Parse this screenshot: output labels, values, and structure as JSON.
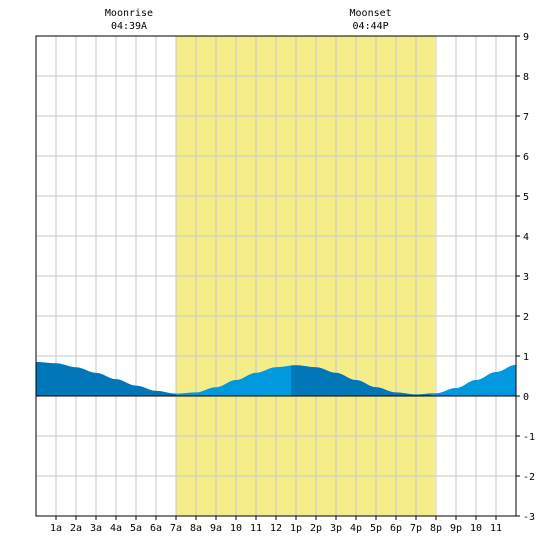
{
  "chart_data": {
    "type": "area",
    "title": "",
    "xlabel": "",
    "ylabel": "",
    "xlim": [
      0,
      24
    ],
    "ylim": [
      -3,
      9
    ],
    "y_ticks": [
      9,
      8,
      7,
      6,
      5,
      4,
      3,
      2,
      1,
      0,
      -1,
      -2,
      -3
    ],
    "x_ticks": [
      {
        "hour": 1,
        "label": "1a"
      },
      {
        "hour": 2,
        "label": "2a"
      },
      {
        "hour": 3,
        "label": "3a"
      },
      {
        "hour": 4,
        "label": "4a"
      },
      {
        "hour": 5,
        "label": "5a"
      },
      {
        "hour": 6,
        "label": "6a"
      },
      {
        "hour": 7,
        "label": "7a"
      },
      {
        "hour": 8,
        "label": "8a"
      },
      {
        "hour": 9,
        "label": "9a"
      },
      {
        "hour": 10,
        "label": "10"
      },
      {
        "hour": 11,
        "label": "11"
      },
      {
        "hour": 12,
        "label": "12"
      },
      {
        "hour": 13,
        "label": "1p"
      },
      {
        "hour": 14,
        "label": "2p"
      },
      {
        "hour": 15,
        "label": "3p"
      },
      {
        "hour": 16,
        "label": "4p"
      },
      {
        "hour": 17,
        "label": "5p"
      },
      {
        "hour": 18,
        "label": "6p"
      },
      {
        "hour": 19,
        "label": "7p"
      },
      {
        "hour": 20,
        "label": "8p"
      },
      {
        "hour": 21,
        "label": "9p"
      },
      {
        "hour": 22,
        "label": "10"
      },
      {
        "hour": 23,
        "label": "11"
      }
    ],
    "grid": true,
    "daylight": {
      "start": 7.0,
      "end": 19.95
    },
    "moon_events": [
      {
        "label": "Moonrise",
        "time": "04:39A",
        "hour": 4.65
      },
      {
        "label": "Moonset",
        "time": "04:44P",
        "hour": 16.73
      }
    ],
    "tide_series": {
      "x": [
        0,
        1,
        2,
        3,
        4,
        5,
        6,
        7,
        8,
        9,
        10,
        11,
        12,
        13,
        14,
        15,
        16,
        17,
        18,
        19,
        20,
        21,
        22,
        23,
        24
      ],
      "y": [
        0.85,
        0.82,
        0.72,
        0.58,
        0.42,
        0.26,
        0.13,
        0.06,
        0.09,
        0.22,
        0.4,
        0.58,
        0.72,
        0.77,
        0.72,
        0.58,
        0.4,
        0.22,
        0.09,
        0.04,
        0.07,
        0.2,
        0.4,
        0.6,
        0.78
      ]
    },
    "segments": [
      {
        "start": 0,
        "end": 7,
        "color": "#0078b8"
      },
      {
        "start": 7,
        "end": 12.75,
        "color": "#0099dd"
      },
      {
        "start": 12.75,
        "end": 19.75,
        "color": "#0078b8"
      },
      {
        "start": 19.75,
        "end": 24,
        "color": "#0099dd"
      }
    ],
    "colors": {
      "background": "#ffffff",
      "daylight": "#f5ec8a",
      "grid": "#c8c8c8",
      "frame": "#000000",
      "zero_line": "#000000"
    }
  }
}
